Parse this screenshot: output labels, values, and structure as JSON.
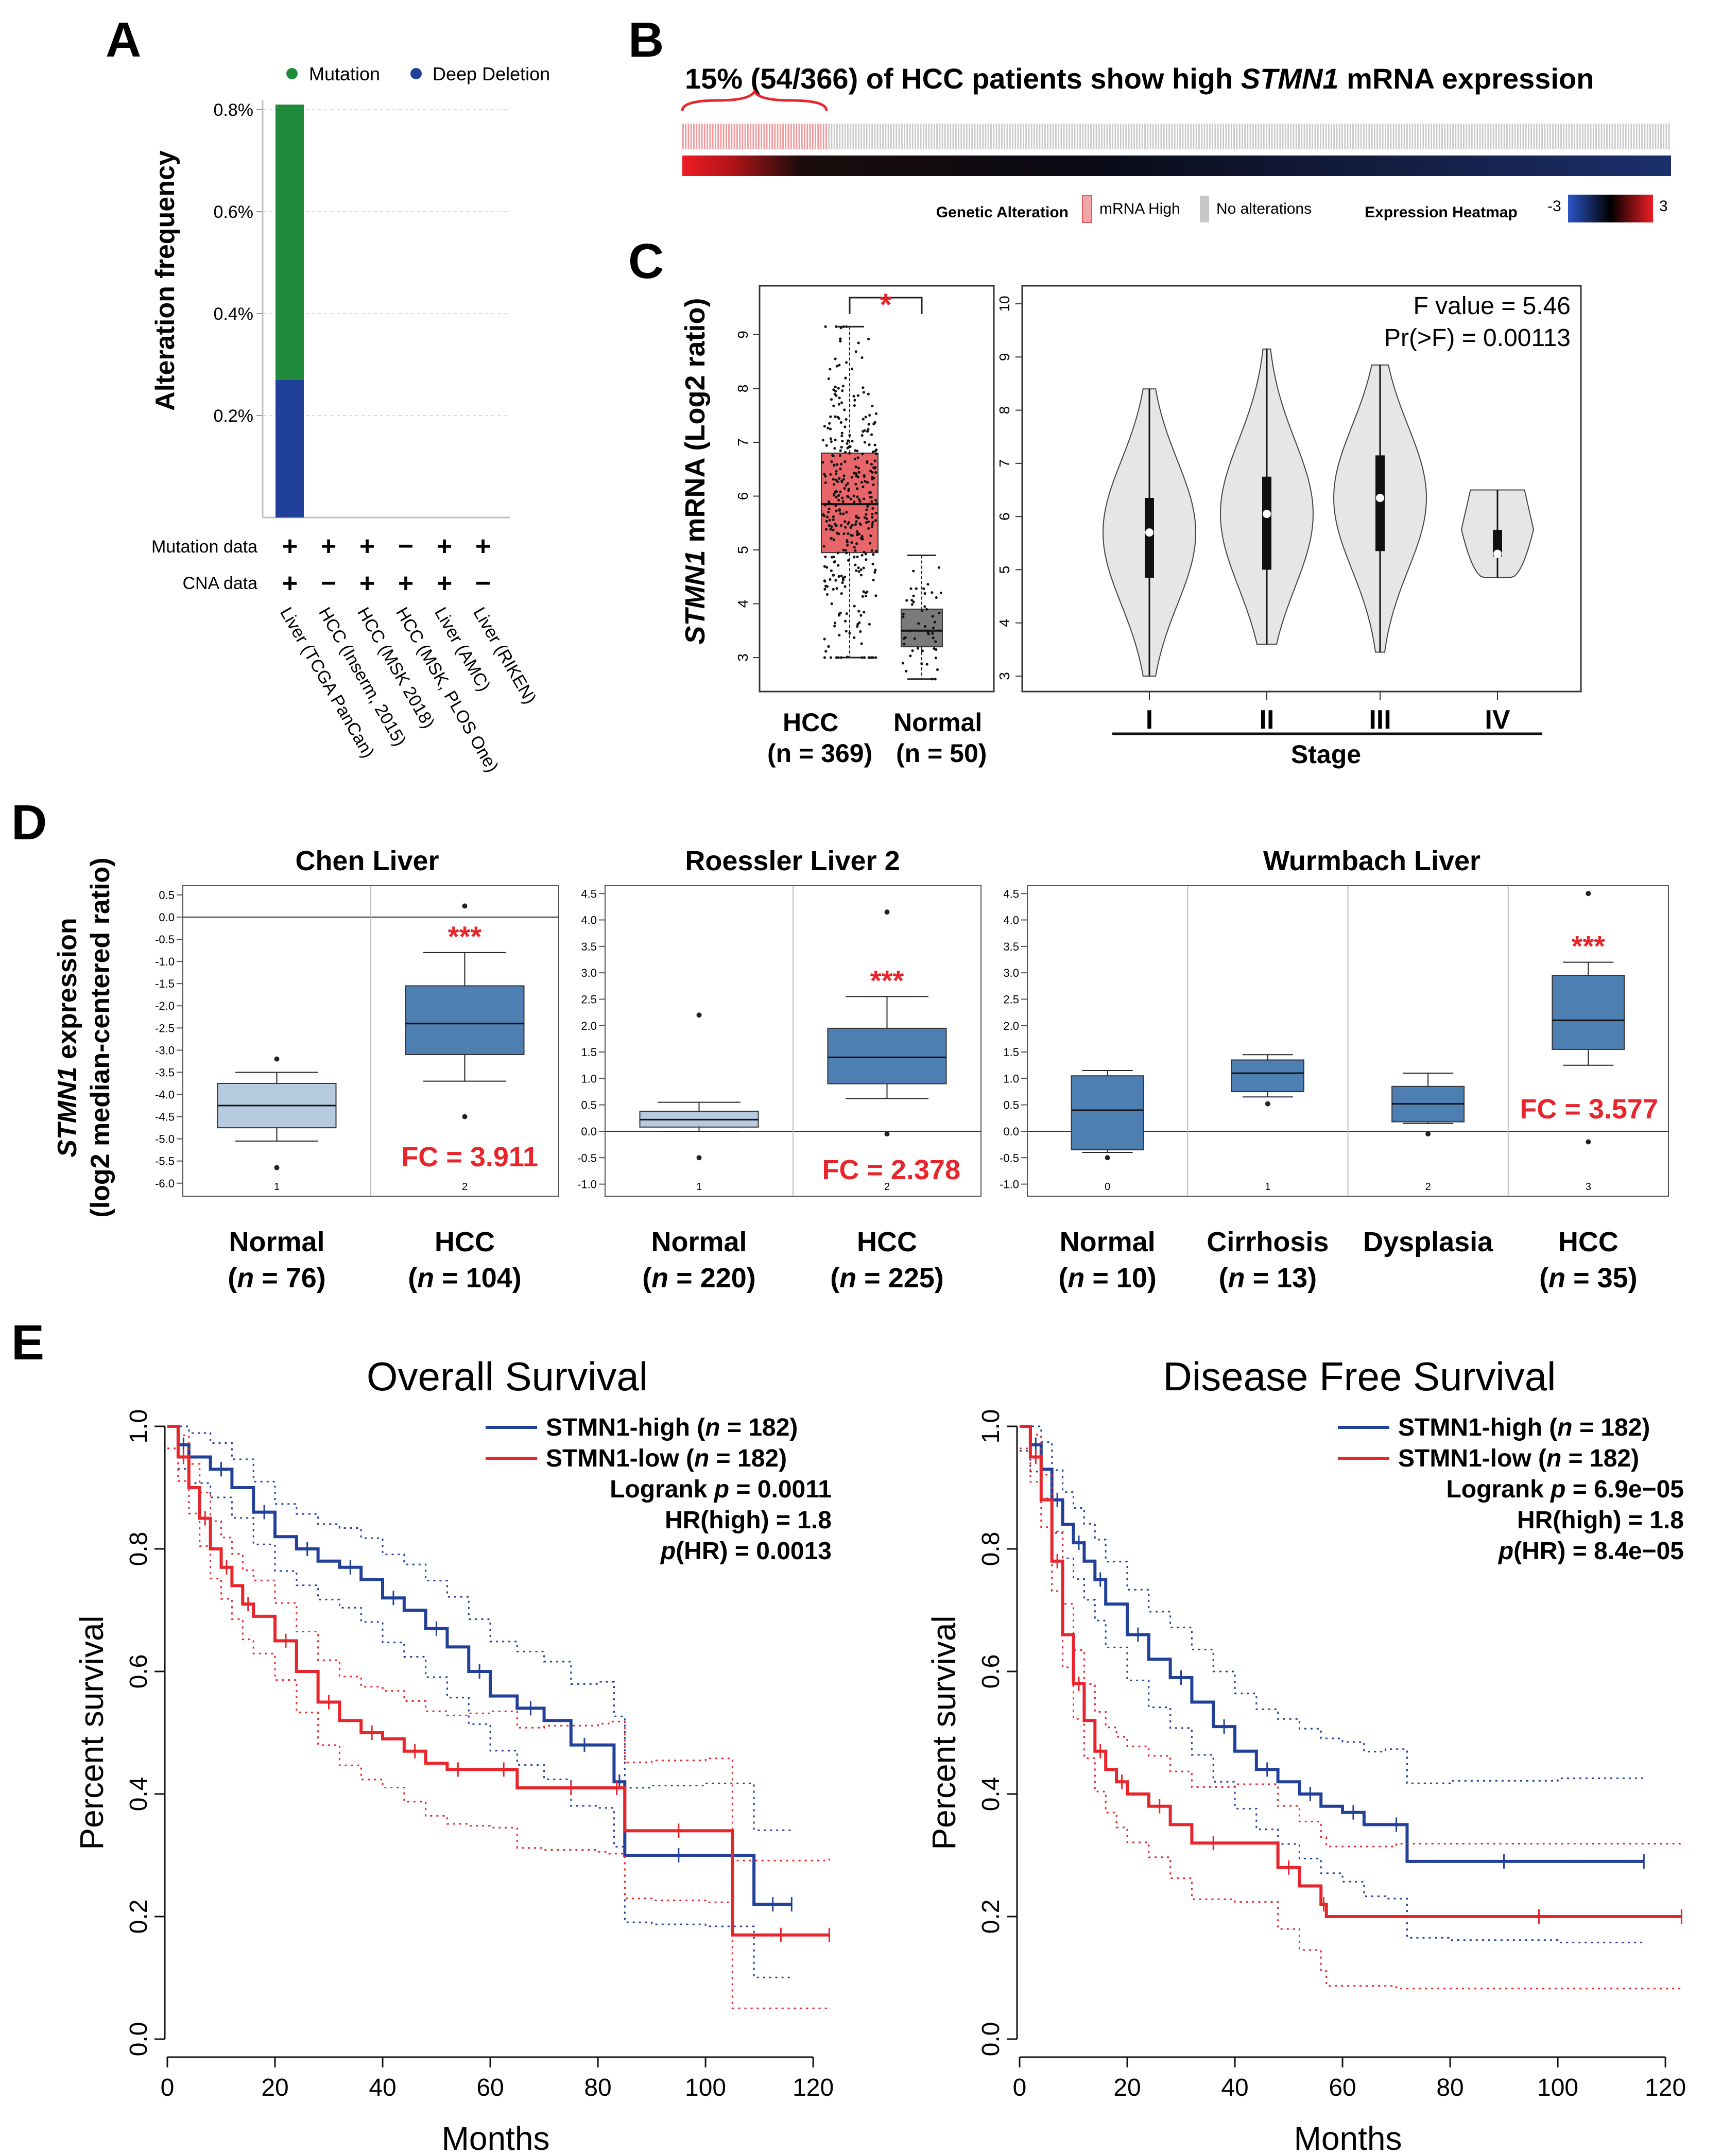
{
  "panels": {
    "A": "A",
    "B": "B",
    "C": "C",
    "D": "D",
    "E": "E"
  },
  "colors": {
    "green": "#1f8a3c",
    "blue": "#21409a",
    "red": "#e8252b",
    "boxRed": "#e8666a",
    "boxGray": "#7a7a7a",
    "boxBlue": "#4d7fb3",
    "boxLight": "#b7cbe0",
    "violin": "#e6e6e6"
  },
  "panelA": {
    "legend": [
      "Mutation",
      "Deep Deletion"
    ],
    "ylabel": "Alteration frequency",
    "yticks": [
      "0.8%",
      "0.6%",
      "0.4%",
      "0.2%"
    ],
    "row_labels": [
      "Mutation data",
      "CNA data"
    ],
    "mutation_marks": [
      "+",
      "+",
      "+",
      "−",
      "+",
      "+"
    ],
    "cna_marks": [
      "+",
      "−",
      "+",
      "+",
      "+",
      "−"
    ],
    "studies": [
      "Liver (TCGA PanCan)",
      "HCC (Inserm, 2015)",
      "HCC (MSK 2018)",
      "HCC (MSK, PLOS One)",
      "Liver (AMC)",
      "Liver (RIKEN)"
    ]
  },
  "panelB": {
    "title_pre": "15% (54/366) of HCC patients show high ",
    "gene": "STMN1",
    "title_post": " mRNA expression",
    "legend_genetic": "Genetic Alteration",
    "legend_high": "mRNA High",
    "legend_none": "No alterations",
    "legend_heat": "Expression Heatmap",
    "heat_min": "-3",
    "heat_max": "3"
  },
  "panelC": {
    "ylabel_gene": "STMN1",
    "ylabel_rest": " mRNA (Log2 ratio)",
    "star": "*",
    "box_yticks": [
      "3",
      "4",
      "5",
      "6",
      "7",
      "8",
      "9"
    ],
    "groups": [
      {
        "name": "HCC",
        "n": "(n = 369)"
      },
      {
        "name": "Normal",
        "n": "(n = 50)"
      }
    ],
    "fvalue": "F value = 5.46",
    "pvalue": "Pr(>F) = 0.00113",
    "violin_yticks": [
      "3",
      "4",
      "5",
      "6",
      "7",
      "8",
      "9",
      "10"
    ],
    "stages": [
      "I",
      "II",
      "III",
      "IV"
    ],
    "stage_label": "Stage"
  },
  "panelD": {
    "ylabel_gene": "STMN1",
    "ylabel_rest": " expression",
    "ylabel2": "(log2 median-centered ratio)",
    "plots": [
      {
        "title": "Chen Liver",
        "fc": "FC = 3.911",
        "stars": "***",
        "yticks": [
          "0.5",
          "0.0",
          "-0.5",
          "-1.0",
          "-1.5",
          "-2.0",
          "-2.5",
          "-3.0",
          "-3.5",
          "-4.0",
          "-4.5",
          "-5.0",
          "-5.5",
          "-6.0"
        ],
        "idx": [
          "1",
          "2"
        ],
        "groups": [
          {
            "name": "Normal",
            "n": "(n = 76)"
          },
          {
            "name": "HCC",
            "n": "(n = 104)"
          }
        ]
      },
      {
        "title": "Roessler Liver 2",
        "fc": "FC = 2.378",
        "stars": "***",
        "yticks": [
          "4.5",
          "4.0",
          "3.5",
          "3.0",
          "2.5",
          "2.0",
          "1.5",
          "1.0",
          "0.5",
          "0.0",
          "-0.5",
          "-1.0"
        ],
        "idx": [
          "1",
          "2"
        ],
        "groups": [
          {
            "name": "Normal",
            "n": "(n = 220)"
          },
          {
            "name": "HCC",
            "n": "(n = 225)"
          }
        ]
      },
      {
        "title": "Wurmbach Liver",
        "fc": "FC = 3.577",
        "stars": "***",
        "yticks": [
          "4.5",
          "4.0",
          "3.5",
          "3.0",
          "2.5",
          "2.0",
          "1.5",
          "1.0",
          "0.5",
          "0.0",
          "-0.5",
          "-1.0"
        ],
        "idx": [
          "0",
          "1",
          "2",
          "3"
        ],
        "groups": [
          {
            "name": "Normal",
            "n": "(n = 10)"
          },
          {
            "name": "Cirrhosis",
            "n": "(n = 13)"
          },
          {
            "name": "Dysplasia",
            "n": ""
          },
          {
            "name": "HCC",
            "n": "(n = 35)"
          }
        ]
      }
    ]
  },
  "panelE": {
    "plots": [
      {
        "title": "Overall Survival",
        "high": "STMN1-high (n = 182)",
        "low": "STMN1-low (n = 182)",
        "logrank": "Logrank p = 0.0011",
        "hr": "HR(high) = 1.8",
        "phr": "p(HR) = 0.0013"
      },
      {
        "title": "Disease Free Survival",
        "high": "STMN1-high (n = 182)",
        "low": "STMN1-low (n = 182)",
        "logrank": "Logrank p = 6.9e−05",
        "hr": "HR(high) = 1.8",
        "phr": "p(HR) = 8.4e−05"
      }
    ],
    "ylabel": "Percent survival",
    "xlabel": "Months",
    "yticks": [
      "0.0",
      "0.2",
      "0.4",
      "0.6",
      "0.8",
      "1.0"
    ],
    "xticks": [
      "0",
      "20",
      "40",
      "60",
      "80",
      "100",
      "120"
    ]
  },
  "chart_data": [
    {
      "type": "bar",
      "panel": "A",
      "title": "",
      "ylabel": "Alteration frequency",
      "ylim": [
        0,
        0.85
      ],
      "categories": [
        "Liver (TCGA PanCan)",
        "HCC (Inserm, 2015)",
        "HCC (MSK 2018)",
        "HCC (MSK, PLOS One)",
        "Liver (AMC)",
        "Liver (RIKEN)"
      ],
      "series": [
        {
          "name": "Deep Deletion",
          "values": [
            0.27,
            0,
            0,
            0,
            0,
            0
          ]
        },
        {
          "name": "Mutation",
          "values": [
            0.54,
            0,
            0,
            0,
            0,
            0
          ]
        }
      ]
    },
    {
      "type": "box",
      "panel": "C",
      "ylabel": "STMN1 mRNA (Log2 ratio)",
      "ylim": [
        2.6,
        9.6
      ],
      "categories": [
        "HCC",
        "Normal"
      ],
      "series": [
        {
          "name": "HCC",
          "min": 3.0,
          "q1": 4.95,
          "median": 5.85,
          "q3": 6.8,
          "max": 9.15
        },
        {
          "name": "Normal",
          "min": 2.6,
          "q1": 3.2,
          "median": 3.5,
          "q3": 3.9,
          "max": 4.9
        }
      ]
    },
    {
      "type": "violin",
      "panel": "C",
      "ylim": [
        2.8,
        10.3
      ],
      "categories": [
        "I",
        "II",
        "III",
        "IV"
      ],
      "series": [
        {
          "name": "I",
          "min": 3.0,
          "q1": 4.85,
          "median": 5.7,
          "q3": 6.35,
          "max": 8.4
        },
        {
          "name": "II",
          "min": 3.6,
          "q1": 5.0,
          "median": 6.05,
          "q3": 6.75,
          "max": 9.15
        },
        {
          "name": "III",
          "min": 3.45,
          "q1": 5.35,
          "median": 6.35,
          "q3": 7.15,
          "max": 8.85
        },
        {
          "name": "IV",
          "min": 4.85,
          "q1": 5.25,
          "median": 5.3,
          "q3": 5.75,
          "max": 6.5
        }
      ]
    },
    {
      "type": "box",
      "panel": "D",
      "title": "Chen Liver",
      "ylim": [
        -6.2,
        0.65
      ],
      "categories": [
        "Normal",
        "HCC"
      ],
      "series": [
        {
          "name": "Normal",
          "min": -5.05,
          "q1": -4.75,
          "median": -4.25,
          "q3": -3.75,
          "max": -3.5,
          "outliers": [
            -3.2,
            -5.65
          ]
        },
        {
          "name": "HCC",
          "min": -3.7,
          "q1": -3.1,
          "median": -2.4,
          "q3": -1.55,
          "max": -0.8,
          "outliers": [
            0.25,
            -4.5
          ]
        }
      ]
    },
    {
      "type": "box",
      "panel": "D",
      "title": "Roessler Liver 2",
      "ylim": [
        -1.15,
        4.6
      ],
      "categories": [
        "Normal",
        "HCC"
      ],
      "series": [
        {
          "name": "Normal",
          "min": 0.0,
          "q1": 0.08,
          "median": 0.22,
          "q3": 0.38,
          "max": 0.55,
          "outliers": [
            2.2,
            -0.5
          ]
        },
        {
          "name": "HCC",
          "min": 0.62,
          "q1": 0.9,
          "median": 1.4,
          "q3": 1.95,
          "max": 2.55,
          "outliers": [
            4.15,
            -0.05
          ]
        }
      ]
    },
    {
      "type": "box",
      "panel": "D",
      "title": "Wurmbach Liver",
      "ylim": [
        -1.15,
        4.6
      ],
      "categories": [
        "Normal",
        "Cirrhosis",
        "Dysplasia",
        "HCC"
      ],
      "series": [
        {
          "name": "Normal",
          "min": -0.4,
          "q1": -0.35,
          "median": 0.4,
          "q3": 1.05,
          "max": 1.15,
          "outliers": [
            -0.5
          ]
        },
        {
          "name": "Cirrhosis",
          "min": 0.65,
          "q1": 0.75,
          "median": 1.1,
          "q3": 1.35,
          "max": 1.45,
          "outliers": [
            0.52
          ]
        },
        {
          "name": "Dysplasia",
          "min": 0.15,
          "q1": 0.18,
          "median": 0.52,
          "q3": 0.85,
          "max": 1.1,
          "outliers": [
            -0.05
          ]
        },
        {
          "name": "HCC",
          "min": 1.25,
          "q1": 1.55,
          "median": 2.1,
          "q3": 2.95,
          "max": 3.2,
          "outliers": [
            4.5,
            -0.2
          ]
        }
      ]
    },
    {
      "type": "line",
      "panel": "E",
      "title": "Overall Survival",
      "xlabel": "Months",
      "ylabel": "Percent survival",
      "xlim": [
        0,
        125
      ],
      "ylim": [
        0,
        1
      ],
      "series": [
        {
          "name": "STMN1-high",
          "x": [
            0,
            2,
            4,
            8,
            12,
            16,
            20,
            24,
            28,
            32,
            36,
            40,
            44,
            48,
            52,
            56,
            60,
            65,
            70,
            75,
            80,
            83,
            85,
            90,
            100,
            109,
            116
          ],
          "y": [
            1.0,
            0.97,
            0.95,
            0.93,
            0.9,
            0.86,
            0.82,
            0.8,
            0.78,
            0.77,
            0.75,
            0.72,
            0.7,
            0.67,
            0.64,
            0.6,
            0.56,
            0.54,
            0.52,
            0.48,
            0.48,
            0.42,
            0.3,
            0.3,
            0.3,
            0.22,
            0.22
          ]
        },
        {
          "name": "STMN1-low",
          "x": [
            0,
            2,
            4,
            6,
            8,
            10,
            12,
            14,
            16,
            20,
            24,
            28,
            32,
            36,
            40,
            44,
            48,
            52,
            56,
            60,
            65,
            70,
            80,
            82,
            85,
            90,
            100,
            105,
            123
          ],
          "y": [
            1.0,
            0.95,
            0.9,
            0.85,
            0.8,
            0.77,
            0.74,
            0.71,
            0.69,
            0.65,
            0.6,
            0.55,
            0.52,
            0.5,
            0.49,
            0.47,
            0.45,
            0.44,
            0.44,
            0.44,
            0.41,
            0.41,
            0.41,
            0.41,
            0.34,
            0.34,
            0.34,
            0.17,
            0.17
          ]
        }
      ]
    },
    {
      "type": "line",
      "panel": "E",
      "title": "Disease Free Survival",
      "xlabel": "Months",
      "ylabel": "Percent survival",
      "xlim": [
        0,
        125
      ],
      "ylim": [
        0,
        1
      ],
      "series": [
        {
          "name": "STMN1-high",
          "x": [
            0,
            2,
            4,
            6,
            8,
            10,
            12,
            14,
            16,
            20,
            24,
            28,
            32,
            36,
            40,
            44,
            48,
            52,
            56,
            60,
            64,
            68,
            72,
            80,
            100,
            116
          ],
          "y": [
            1.0,
            0.97,
            0.93,
            0.88,
            0.84,
            0.81,
            0.78,
            0.75,
            0.71,
            0.66,
            0.62,
            0.59,
            0.55,
            0.51,
            0.47,
            0.44,
            0.42,
            0.4,
            0.38,
            0.37,
            0.35,
            0.35,
            0.29,
            0.29,
            0.29,
            0.29
          ]
        },
        {
          "name": "STMN1-low",
          "x": [
            0,
            2,
            4,
            6,
            8,
            10,
            12,
            14,
            16,
            18,
            20,
            24,
            28,
            32,
            40,
            48,
            52,
            56,
            57,
            70,
            123
          ],
          "y": [
            1.0,
            0.95,
            0.88,
            0.78,
            0.66,
            0.58,
            0.52,
            0.47,
            0.44,
            0.42,
            0.4,
            0.38,
            0.35,
            0.32,
            0.32,
            0.28,
            0.25,
            0.22,
            0.2,
            0.2,
            0.2
          ]
        }
      ]
    }
  ]
}
